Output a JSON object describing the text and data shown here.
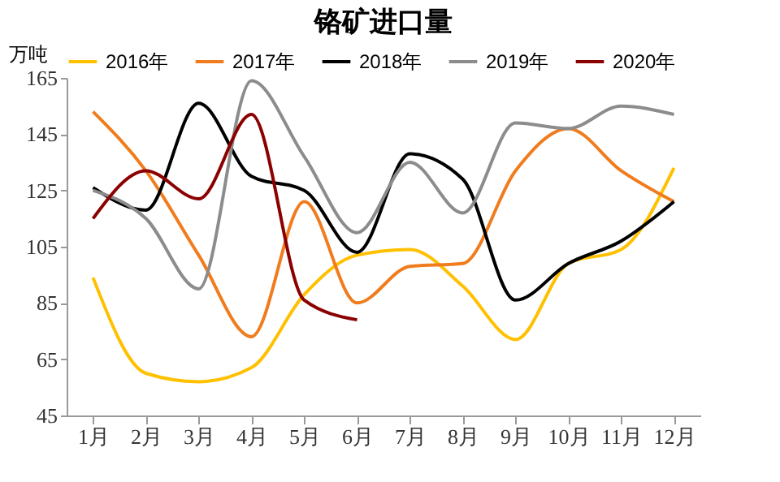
{
  "chart_data": {
    "type": "line",
    "title": "铬矿进口量",
    "ylabel": "万吨",
    "categories": [
      "1月",
      "2月",
      "3月",
      "4月",
      "5月",
      "6月",
      "7月",
      "8月",
      "9月",
      "10月",
      "11月",
      "12月"
    ],
    "series": [
      {
        "name": "2016年",
        "color": "#ffc000",
        "values": [
          94,
          60,
          57,
          62,
          88,
          102,
          104,
          91,
          72,
          99,
          104,
          133
        ]
      },
      {
        "name": "2017年",
        "color": "#f07c1e",
        "values": [
          153,
          132,
          102,
          73,
          121,
          85,
          98,
          99,
          132,
          147,
          132,
          121
        ]
      },
      {
        "name": "2018年",
        "color": "#000000",
        "values": [
          126,
          118,
          156,
          130,
          125,
          103,
          138,
          129,
          86,
          99,
          107,
          121
        ]
      },
      {
        "name": "2019年",
        "color": "#8c8c8c",
        "values": [
          125,
          115,
          90,
          164,
          137,
          110,
          135,
          117,
          149,
          147,
          155,
          152
        ]
      },
      {
        "name": "2020年",
        "color": "#8b0000",
        "values": [
          115,
          132,
          122,
          152,
          86,
          79,
          null,
          null,
          null,
          null,
          null,
          null
        ]
      }
    ],
    "ylim": [
      45,
      165
    ],
    "yticks": [
      45,
      65,
      85,
      105,
      125,
      145,
      165
    ],
    "grid": false,
    "legend": "top",
    "marker": "none",
    "line_style": "solid"
  }
}
